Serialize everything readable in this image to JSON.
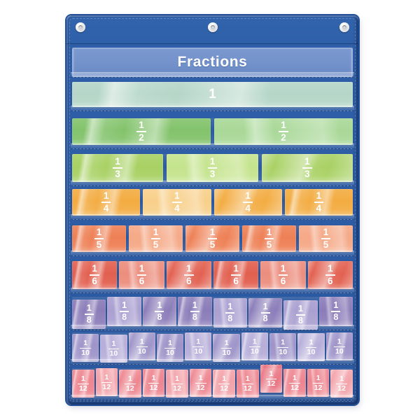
{
  "chart": {
    "title": "Fractions",
    "colors": {
      "fabric": "#2e5fa8",
      "fabric_dark": "#1d4485",
      "header_card": "#7391ca",
      "tile_text": "#ffffff",
      "grommet": "#d9dadc"
    },
    "grommet_count": 3,
    "rows": [
      {
        "slug": "whole",
        "kind": "whole",
        "label": "1",
        "count": 1,
        "color": "#b5d6c8",
        "color_light": "#d6eae1"
      },
      {
        "slug": "halves",
        "kind": "fraction",
        "num": "1",
        "den": "2",
        "count": 2,
        "color": "#83c36c",
        "color_light": "#a9d898"
      },
      {
        "slug": "thirds",
        "kind": "fraction",
        "num": "1",
        "den": "3",
        "count": 3,
        "color": "#a8d164",
        "color_light": "#c5e48e"
      },
      {
        "slug": "fourths",
        "kind": "fraction",
        "num": "1",
        "den": "4",
        "count": 4,
        "color": "#f3ac42",
        "color_light": "#f8d08b"
      },
      {
        "slug": "fifths",
        "kind": "fraction",
        "num": "1",
        "den": "5",
        "count": 5,
        "color": "#ee8055",
        "color_light": "#f5a987"
      },
      {
        "slug": "sixths",
        "kind": "fraction",
        "num": "1",
        "den": "6",
        "count": 6,
        "color": "#e26050",
        "color_light": "#ec8e7e"
      },
      {
        "slug": "eighths",
        "kind": "fraction",
        "num": "1",
        "den": "8",
        "count": 8,
        "color": "#8b7db9",
        "color_light": "#aaa0d1"
      },
      {
        "slug": "tenths",
        "kind": "fraction",
        "num": "1",
        "den": "10",
        "count": 10,
        "color": "#9e94c9",
        "color_light": "#b7aed9"
      },
      {
        "slug": "twelfths",
        "kind": "fraction",
        "num": "1",
        "den": "12",
        "count": 12,
        "color": "#ee8690",
        "color_light": "#f3a3aa",
        "color_dark": "#e97683"
      }
    ]
  }
}
